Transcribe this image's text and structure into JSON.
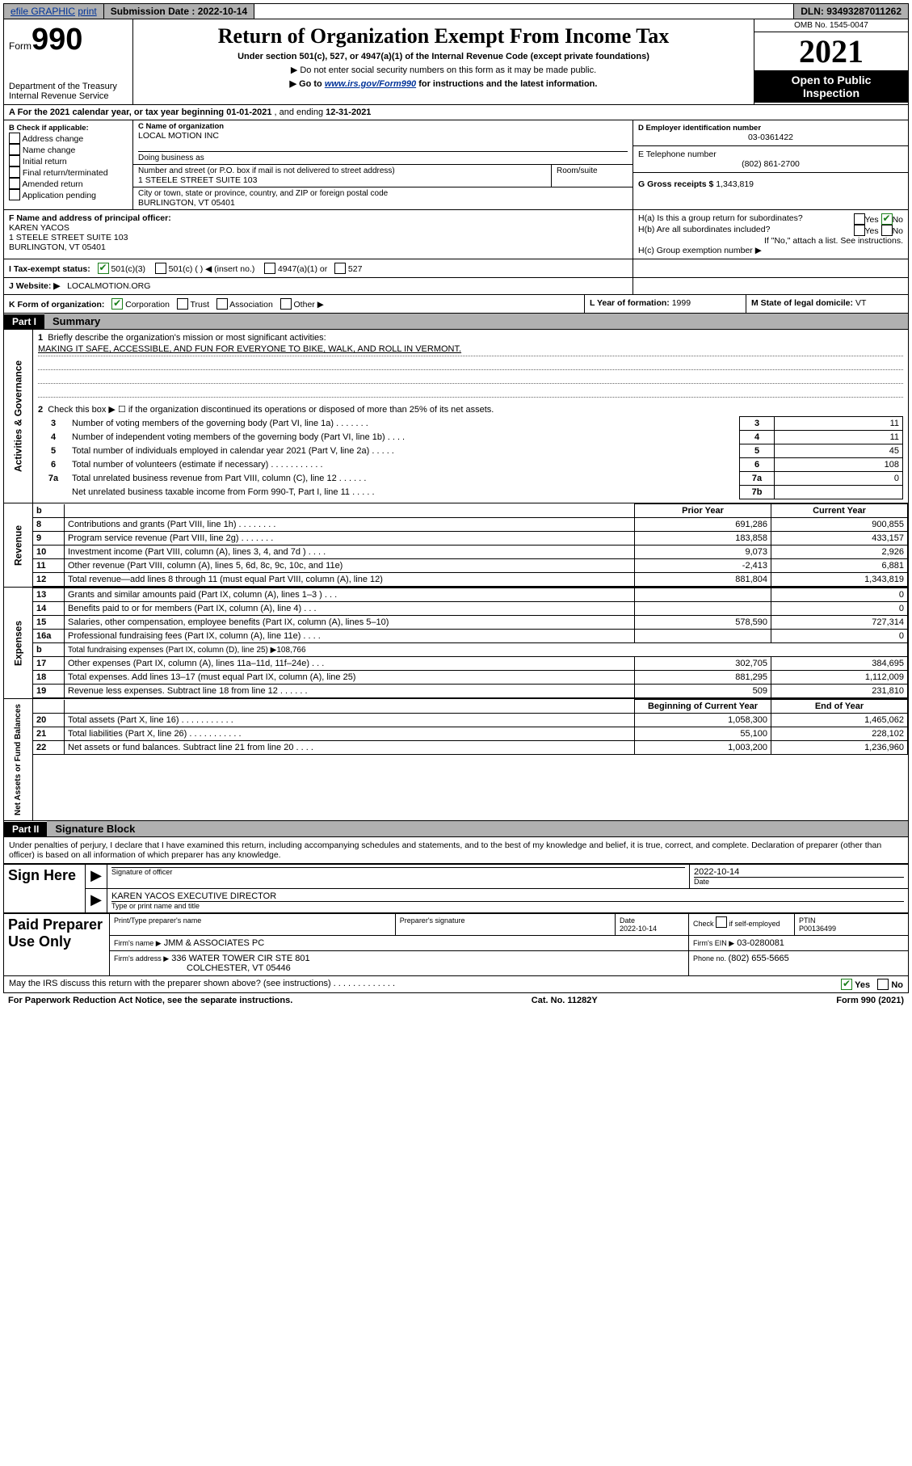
{
  "topbar": {
    "efile": "efile GRAPHIC",
    "print": "print",
    "submission_label": "Submission Date : ",
    "submission_date": "2022-10-14",
    "dln_label": "DLN: ",
    "dln": "93493287011262"
  },
  "header": {
    "form_prefix": "Form",
    "form_number": "990",
    "dept": "Department of the Treasury",
    "irs": "Internal Revenue Service",
    "title": "Return of Organization Exempt From Income Tax",
    "sub1": "Under section 501(c), 527, or 4947(a)(1) of the Internal Revenue Code (except private foundations)",
    "sub2": "▶ Do not enter social security numbers on this form as it may be made public.",
    "sub3_pre": "▶ Go to ",
    "sub3_link": "www.irs.gov/Form990",
    "sub3_post": " for instructions and the latest information.",
    "omb": "OMB No. 1545-0047",
    "year": "2021",
    "open1": "Open to Public",
    "open2": "Inspection"
  },
  "A": {
    "text_pre": "A For the 2021 calendar year, or tax year beginning ",
    "begin": "01-01-2021",
    "mid": " , and ending ",
    "end": "12-31-2021"
  },
  "B": {
    "hdr": "B Check if applicable:",
    "opts": [
      "Address change",
      "Name change",
      "Initial return",
      "Final return/terminated",
      "Amended return",
      "Application pending"
    ]
  },
  "C": {
    "name_lbl": "C Name of organization",
    "name": "LOCAL MOTION INC",
    "dba_lbl": "Doing business as",
    "street_lbl": "Number and street (or P.O. box if mail is not delivered to street address)",
    "room_lbl": "Room/suite",
    "street": "1 STEELE STREET SUITE 103",
    "city_lbl": "City or town, state or province, country, and ZIP or foreign postal code",
    "city": "BURLINGTON, VT  05401"
  },
  "D": {
    "lbl": "D Employer identification number",
    "val": "03-0361422"
  },
  "E": {
    "lbl": "E Telephone number",
    "val": "(802) 861-2700"
  },
  "G": {
    "lbl": "G Gross receipts $ ",
    "val": "1,343,819"
  },
  "F": {
    "lbl": "F Name and address of principal officer:",
    "name": "KAREN YACOS",
    "addr1": "1 STEELE STREET SUITE 103",
    "addr2": "BURLINGTON, VT  05401"
  },
  "H": {
    "a": "H(a)  Is this a group return for subordinates?",
    "b": "H(b)  Are all subordinates included?",
    "bnote": "If \"No,\" attach a list. See instructions.",
    "c": "H(c)  Group exemption number ▶",
    "yes": "Yes",
    "no": "No"
  },
  "I": {
    "lbl": "I  Tax-exempt status:",
    "c3": "501(c)(3)",
    "c": "501(c) (  ) ◀ (insert no.)",
    "a1": "4947(a)(1) or",
    "s527": "527"
  },
  "J": {
    "lbl": "J  Website: ▶",
    "val": "LOCALMOTION.ORG"
  },
  "K": {
    "lbl": "K Form of organization:",
    "corp": "Corporation",
    "trust": "Trust",
    "assoc": "Association",
    "other": "Other ▶"
  },
  "L": {
    "lbl": "L Year of formation: ",
    "val": "1999"
  },
  "M": {
    "lbl": "M State of legal domicile: ",
    "val": "VT"
  },
  "partI": {
    "hdr_part": "Part I",
    "hdr_title": "Summary",
    "vlabel_ag": "Activities & Governance",
    "l1": "Briefly describe the organization's mission or most significant activities:",
    "mission": "MAKING IT SAFE, ACCESSIBLE, AND FUN FOR EVERYONE TO BIKE, WALK, AND ROLL IN VERMONT.",
    "l2": "Check this box ▶ ☐  if the organization discontinued its operations or disposed of more than 25% of its net assets.",
    "rows_ag": [
      {
        "n": "3",
        "l": "Number of voting members of the governing body (Part VI, line 1a) . . . . . . .",
        "idx": "3",
        "v": "11"
      },
      {
        "n": "4",
        "l": "Number of independent voting members of the governing body (Part VI, line 1b) . . . .",
        "idx": "4",
        "v": "11"
      },
      {
        "n": "5",
        "l": "Total number of individuals employed in calendar year 2021 (Part V, line 2a) . . . . .",
        "idx": "5",
        "v": "45"
      },
      {
        "n": "6",
        "l": "Total number of volunteers (estimate if necessary) . . . . . . . . . . .",
        "idx": "6",
        "v": "108"
      },
      {
        "n": "7a",
        "l": "Total unrelated business revenue from Part VIII, column (C), line 12 . . . . . .",
        "idx": "7a",
        "v": "0"
      },
      {
        "n": "",
        "l": "Net unrelated business taxable income from Form 990-T, Part I, line 11 . . . . .",
        "idx": "7b",
        "v": ""
      }
    ]
  },
  "revenue": {
    "vlabel": "Revenue",
    "hdr_b": "b",
    "hdr_prior": "Prior Year",
    "hdr_curr": "Current Year",
    "rows": [
      {
        "n": "8",
        "l": "Contributions and grants (Part VIII, line 1h) . . . . . . . .",
        "p": "691,286",
        "c": "900,855"
      },
      {
        "n": "9",
        "l": "Program service revenue (Part VIII, line 2g) . . . . . . .",
        "p": "183,858",
        "c": "433,157"
      },
      {
        "n": "10",
        "l": "Investment income (Part VIII, column (A), lines 3, 4, and 7d ) . . . .",
        "p": "9,073",
        "c": "2,926"
      },
      {
        "n": "11",
        "l": "Other revenue (Part VIII, column (A), lines 5, 6d, 8c, 9c, 10c, and 11e)",
        "p": "-2,413",
        "c": "6,881"
      },
      {
        "n": "12",
        "l": "Total revenue—add lines 8 through 11 (must equal Part VIII, column (A), line 12)",
        "p": "881,804",
        "c": "1,343,819"
      }
    ]
  },
  "expenses": {
    "vlabel": "Expenses",
    "rows": [
      {
        "n": "13",
        "l": "Grants and similar amounts paid (Part IX, column (A), lines 1–3 ) . . .",
        "p": "",
        "c": "0"
      },
      {
        "n": "14",
        "l": "Benefits paid to or for members (Part IX, column (A), line 4) . . .",
        "p": "",
        "c": "0"
      },
      {
        "n": "15",
        "l": "Salaries, other compensation, employee benefits (Part IX, column (A), lines 5–10)",
        "p": "578,590",
        "c": "727,314"
      },
      {
        "n": "16a",
        "l": "Professional fundraising fees (Part IX, column (A), line 11e) . . . .",
        "p": "",
        "c": "0"
      },
      {
        "n": "b",
        "l": "Total fundraising expenses (Part IX, column (D), line 25) ▶108,766",
        "p": "—",
        "c": "—"
      },
      {
        "n": "17",
        "l": "Other expenses (Part IX, column (A), lines 11a–11d, 11f–24e) . . .",
        "p": "302,705",
        "c": "384,695"
      },
      {
        "n": "18",
        "l": "Total expenses. Add lines 13–17 (must equal Part IX, column (A), line 25)",
        "p": "881,295",
        "c": "1,112,009"
      },
      {
        "n": "19",
        "l": "Revenue less expenses. Subtract line 18 from line 12 . . . . . .",
        "p": "509",
        "c": "231,810"
      }
    ]
  },
  "netassets": {
    "vlabel": "Net Assets or Fund Balances",
    "hdr_b": "Beginning of Current Year",
    "hdr_e": "End of Year",
    "rows": [
      {
        "n": "20",
        "l": "Total assets (Part X, line 16) . . . . . . . . . . .",
        "p": "1,058,300",
        "c": "1,465,062"
      },
      {
        "n": "21",
        "l": "Total liabilities (Part X, line 26) . . . . . . . . . . .",
        "p": "55,100",
        "c": "228,102"
      },
      {
        "n": "22",
        "l": "Net assets or fund balances. Subtract line 21 from line 20 . . . .",
        "p": "1,003,200",
        "c": "1,236,960"
      }
    ]
  },
  "partII": {
    "hdr_part": "Part II",
    "hdr_title": "Signature Block",
    "penalty": "Under penalties of perjury, I declare that I have examined this return, including accompanying schedules and statements, and to the best of my knowledge and belief, it is true, correct, and complete. Declaration of preparer (other than officer) is based on all information of which preparer has any knowledge."
  },
  "sign": {
    "here": "Sign Here",
    "sig_lbl": "Signature of officer",
    "date": "2022-10-14",
    "date_lbl": "Date",
    "name": "KAREN YACOS  EXECUTIVE DIRECTOR",
    "name_lbl": "Type or print name and title"
  },
  "paid": {
    "hdr": "Paid Preparer Use Only",
    "col1": "Print/Type preparer's name",
    "col2": "Preparer's signature",
    "col3_lbl": "Date",
    "col3": "2022-10-14",
    "col4_lbl": "Check",
    "col4_txt": "if self-employed",
    "col5_lbl": "PTIN",
    "col5": "P00136499",
    "firm_name_lbl": "Firm's name    ▶",
    "firm_name": "JMM & ASSOCIATES PC",
    "firm_ein_lbl": "Firm's EIN ▶",
    "firm_ein": "03-0280081",
    "firm_addr_lbl": "Firm's address ▶",
    "firm_addr1": "336 WATER TOWER CIR STE 801",
    "firm_addr2": "COLCHESTER, VT  05446",
    "phone_lbl": "Phone no. ",
    "phone": "(802) 655-5665"
  },
  "discuss": {
    "q": "May the IRS discuss this return with the preparer shown above? (see instructions) . . . . . . . . . . . . .",
    "yes": "Yes",
    "no": "No"
  },
  "footer": {
    "left": "For Paperwork Reduction Act Notice, see the separate instructions.",
    "mid": "Cat. No. 11282Y",
    "right": "Form 990 (2021)"
  }
}
